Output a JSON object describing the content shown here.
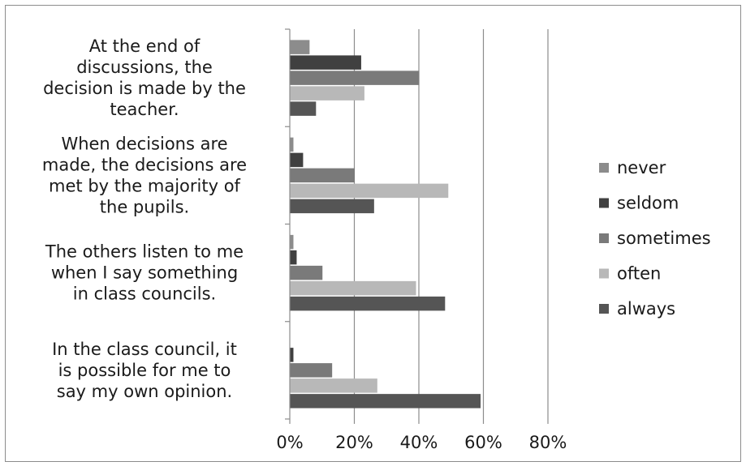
{
  "chart_data": {
    "type": "bar",
    "orientation": "horizontal",
    "grid": "vertical major gridlines",
    "legend_position": "right",
    "xlim": [
      0,
      80
    ],
    "x_ticks": [
      "0%",
      "20%",
      "40%",
      "60%",
      "80%"
    ],
    "x_tick_values": [
      0,
      20,
      40,
      60,
      80
    ],
    "categories": [
      {
        "label_lines": [
          "At the end of",
          "discussions, the",
          "decision is made by the",
          "teacher."
        ]
      },
      {
        "label_lines": [
          "When decisions are",
          "made, the decisions are",
          "met by the majority of",
          "the pupils."
        ]
      },
      {
        "label_lines": [
          "The others listen to me",
          "when I say something",
          "in class councils."
        ]
      },
      {
        "label_lines": [
          "In the class council, it",
          "is possible for me to",
          "say my own opinion."
        ]
      }
    ],
    "series": [
      {
        "name": "never",
        "color": "#8c8c8c",
        "values": [
          6,
          1,
          1,
          0
        ]
      },
      {
        "name": "seldom",
        "color": "#404040",
        "values": [
          22,
          4,
          2,
          1
        ]
      },
      {
        "name": "sometimes",
        "color": "#7a7a7a",
        "values": [
          40,
          20,
          10,
          13
        ]
      },
      {
        "name": "often",
        "color": "#b8b8b8",
        "values": [
          23,
          49,
          39,
          27
        ]
      },
      {
        "name": "always",
        "color": "#555555",
        "values": [
          8,
          26,
          48,
          59
        ]
      }
    ]
  }
}
